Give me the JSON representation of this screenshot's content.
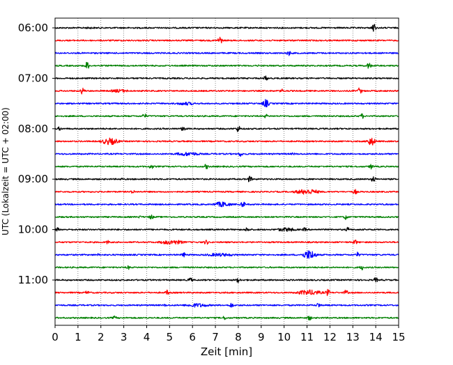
{
  "chart_data": {
    "type": "line",
    "subtype": "helicorder-seismogram",
    "xlabel": "Zeit  [min]",
    "ylabel": "UTC (Lokalzeit = UTC + 02:00)",
    "xlim": [
      0,
      15
    ],
    "x_ticks": [
      0,
      1,
      2,
      3,
      4,
      5,
      6,
      7,
      8,
      9,
      10,
      11,
      12,
      13,
      14,
      15
    ],
    "x_tick_labels": [
      "0",
      "1",
      "2",
      "3",
      "4",
      "5",
      "6",
      "7",
      "8",
      "9",
      "10",
      "11",
      "12",
      "13",
      "14",
      "15"
    ],
    "x_grid": true,
    "x_grid_style": "dotted",
    "y_tick_labels": [
      "06:00",
      "07:00",
      "08:00",
      "09:00",
      "10:00",
      "11:00"
    ],
    "minutes_per_line": 15,
    "lines_per_hour_label": 4,
    "colors": [
      "#000000",
      "#ff0000",
      "#0000ff",
      "#008000"
    ],
    "traces": [
      {
        "start": "06:00",
        "color": "#000000",
        "events": [
          {
            "t": 1.5,
            "a": 1.5,
            "d": 0.4
          },
          {
            "t": 13.9,
            "a": 7,
            "d": 0.1
          }
        ]
      },
      {
        "start": "06:15",
        "color": "#ff0000",
        "events": [
          {
            "t": 7.2,
            "a": 6,
            "d": 0.1
          }
        ]
      },
      {
        "start": "06:30",
        "color": "#0000ff",
        "events": [
          {
            "t": 10.2,
            "a": 4,
            "d": 0.1
          }
        ]
      },
      {
        "start": "06:45",
        "color": "#008000",
        "events": [
          {
            "t": 1.4,
            "a": 6,
            "d": 0.1
          },
          {
            "t": 8.9,
            "a": 1.5,
            "d": 0.1
          },
          {
            "t": 13.7,
            "a": 5,
            "d": 0.1
          }
        ]
      },
      {
        "start": "07:00",
        "color": "#000000",
        "events": [
          {
            "t": 9.2,
            "a": 4,
            "d": 0.1
          }
        ]
      },
      {
        "start": "07:15",
        "color": "#ff0000",
        "events": [
          {
            "t": 1.2,
            "a": 5,
            "d": 0.1
          },
          {
            "t": 2.8,
            "a": 2.5,
            "d": 0.5
          },
          {
            "t": 9.9,
            "a": 3,
            "d": 0.1
          },
          {
            "t": 13.3,
            "a": 5,
            "d": 0.1
          }
        ]
      },
      {
        "start": "07:30",
        "color": "#0000ff",
        "events": [
          {
            "t": 5.7,
            "a": 2.5,
            "d": 0.5
          },
          {
            "t": 9.2,
            "a": 6,
            "d": 0.15
          }
        ]
      },
      {
        "start": "07:45",
        "color": "#008000",
        "events": [
          {
            "t": 3.9,
            "a": 4,
            "d": 0.1
          },
          {
            "t": 9.2,
            "a": 3,
            "d": 0.1
          },
          {
            "t": 13.4,
            "a": 4,
            "d": 0.1
          }
        ]
      },
      {
        "start": "08:00",
        "color": "#000000",
        "events": [
          {
            "t": 0.2,
            "a": 3,
            "d": 0.1
          },
          {
            "t": 5.6,
            "a": 4.5,
            "d": 0.1
          },
          {
            "t": 8.0,
            "a": 5,
            "d": 0.1
          }
        ]
      },
      {
        "start": "08:15",
        "color": "#ff0000",
        "events": [
          {
            "t": 2.4,
            "a": 5,
            "d": 0.4
          },
          {
            "t": 13.8,
            "a": 6,
            "d": 0.2
          }
        ]
      },
      {
        "start": "08:30",
        "color": "#0000ff",
        "events": [
          {
            "t": 5.8,
            "a": 3,
            "d": 0.6
          },
          {
            "t": 8.1,
            "a": 4,
            "d": 0.1
          },
          {
            "t": 10.4,
            "a": 2,
            "d": 0.1
          }
        ]
      },
      {
        "start": "08:45",
        "color": "#008000",
        "events": [
          {
            "t": 4.2,
            "a": 4,
            "d": 0.1
          },
          {
            "t": 6.6,
            "a": 4,
            "d": 0.1
          },
          {
            "t": 13.8,
            "a": 4,
            "d": 0.1
          }
        ]
      },
      {
        "start": "09:00",
        "color": "#000000",
        "events": [
          {
            "t": 2.9,
            "a": 2,
            "d": 0.1
          },
          {
            "t": 8.5,
            "a": 5,
            "d": 0.1
          },
          {
            "t": 13.9,
            "a": 5,
            "d": 0.1
          }
        ]
      },
      {
        "start": "09:15",
        "color": "#ff0000",
        "events": [
          {
            "t": 3.4,
            "a": 3,
            "d": 0.1
          },
          {
            "t": 11.0,
            "a": 4,
            "d": 0.6
          },
          {
            "t": 13.1,
            "a": 4,
            "d": 0.1
          }
        ]
      },
      {
        "start": "09:30",
        "color": "#0000ff",
        "events": [
          {
            "t": 7.3,
            "a": 4,
            "d": 0.4
          },
          {
            "t": 8.2,
            "a": 5,
            "d": 0.1
          }
        ]
      },
      {
        "start": "09:45",
        "color": "#008000",
        "events": [
          {
            "t": 3.7,
            "a": 2,
            "d": 0.1
          },
          {
            "t": 4.2,
            "a": 4,
            "d": 0.1
          },
          {
            "t": 12.7,
            "a": 4,
            "d": 0.1
          }
        ]
      },
      {
        "start": "10:00",
        "color": "#000000",
        "events": [
          {
            "t": 0.1,
            "a": 3,
            "d": 0.1
          },
          {
            "t": 8.4,
            "a": 4,
            "d": 0.1
          },
          {
            "t": 10.1,
            "a": 3,
            "d": 0.5
          },
          {
            "t": 10.9,
            "a": 3,
            "d": 0.1
          },
          {
            "t": 12.8,
            "a": 4,
            "d": 0.1
          }
        ]
      },
      {
        "start": "10:15",
        "color": "#ff0000",
        "events": [
          {
            "t": 2.3,
            "a": 3,
            "d": 0.1
          },
          {
            "t": 5.1,
            "a": 3.5,
            "d": 0.6
          },
          {
            "t": 6.6,
            "a": 4,
            "d": 0.1
          },
          {
            "t": 13.1,
            "a": 4,
            "d": 0.1
          }
        ]
      },
      {
        "start": "10:30",
        "color": "#0000ff",
        "events": [
          {
            "t": 1.9,
            "a": 2,
            "d": 0.1
          },
          {
            "t": 5.6,
            "a": 4,
            "d": 0.1
          },
          {
            "t": 7.2,
            "a": 2.5,
            "d": 0.8
          },
          {
            "t": 11.1,
            "a": 7,
            "d": 0.3
          },
          {
            "t": 13.2,
            "a": 4,
            "d": 0.1
          }
        ]
      },
      {
        "start": "10:45",
        "color": "#008000",
        "events": [
          {
            "t": 3.2,
            "a": 3,
            "d": 0.1
          },
          {
            "t": 13.4,
            "a": 4,
            "d": 0.1
          }
        ]
      },
      {
        "start": "11:00",
        "color": "#000000",
        "events": [
          {
            "t": 5.9,
            "a": 4,
            "d": 0.1
          },
          {
            "t": 8.0,
            "a": 4,
            "d": 0.1
          },
          {
            "t": 14.0,
            "a": 4,
            "d": 0.1
          }
        ]
      },
      {
        "start": "11:15",
        "color": "#ff0000",
        "events": [
          {
            "t": 1.4,
            "a": 3,
            "d": 0.1
          },
          {
            "t": 4.9,
            "a": 4,
            "d": 0.1
          },
          {
            "t": 11.1,
            "a": 4,
            "d": 0.6
          },
          {
            "t": 11.9,
            "a": 5,
            "d": 0.1
          },
          {
            "t": 12.7,
            "a": 4,
            "d": 0.1
          }
        ]
      },
      {
        "start": "11:30",
        "color": "#0000ff",
        "events": [
          {
            "t": 4.8,
            "a": 2,
            "d": 0.1
          },
          {
            "t": 6.2,
            "a": 3,
            "d": 0.6
          },
          {
            "t": 7.7,
            "a": 4,
            "d": 0.1
          },
          {
            "t": 11.5,
            "a": 4,
            "d": 0.1
          }
        ]
      },
      {
        "start": "11:45",
        "color": "#008000",
        "events": [
          {
            "t": 2.6,
            "a": 3,
            "d": 0.1
          },
          {
            "t": 7.4,
            "a": 3,
            "d": 0.1
          },
          {
            "t": 11.1,
            "a": 4,
            "d": 0.1
          }
        ]
      }
    ]
  }
}
